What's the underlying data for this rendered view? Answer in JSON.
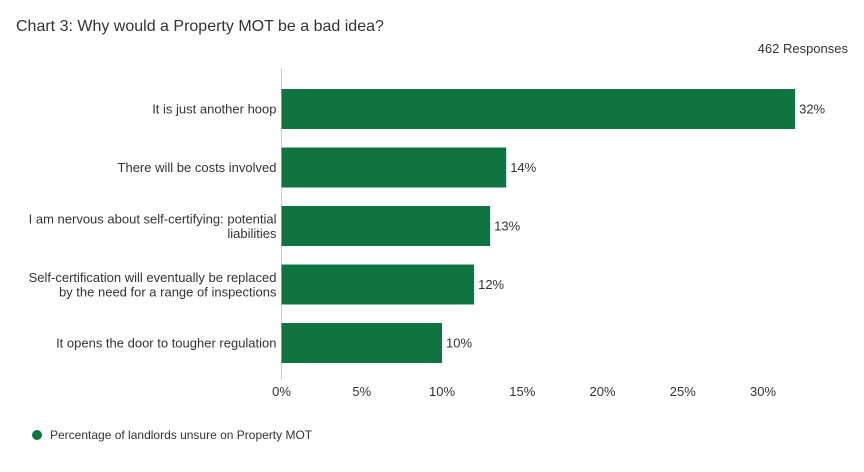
{
  "header": {
    "title": "Chart 3: Why would a Property MOT be a bad idea?",
    "responses": "462 Responses"
  },
  "colors": {
    "bar": "#0f7440",
    "axis": "#cccccc",
    "text": "#333333"
  },
  "chart_data": {
    "type": "bar",
    "orientation": "horizontal",
    "title": "Chart 3: Why would a Property MOT be a bad idea?",
    "categories": [
      [
        "It is just another hoop"
      ],
      [
        "There will be costs involved"
      ],
      [
        "I am nervous about self-certifying: potential",
        "liabilities"
      ],
      [
        "Self-certification will eventually be replaced",
        "by the need for a range of inspections"
      ],
      [
        "It opens the door to tougher regulation"
      ]
    ],
    "series": [
      {
        "name": "Percentage of landlords unsure on Property MOT",
        "values": [
          32,
          14,
          13,
          12,
          10
        ]
      }
    ],
    "xlim": [
      0,
      30
    ],
    "xticks": [
      0,
      5,
      10,
      15,
      20,
      25,
      30
    ],
    "value_suffix": "%",
    "grid": false,
    "legend": "bottom-left"
  }
}
